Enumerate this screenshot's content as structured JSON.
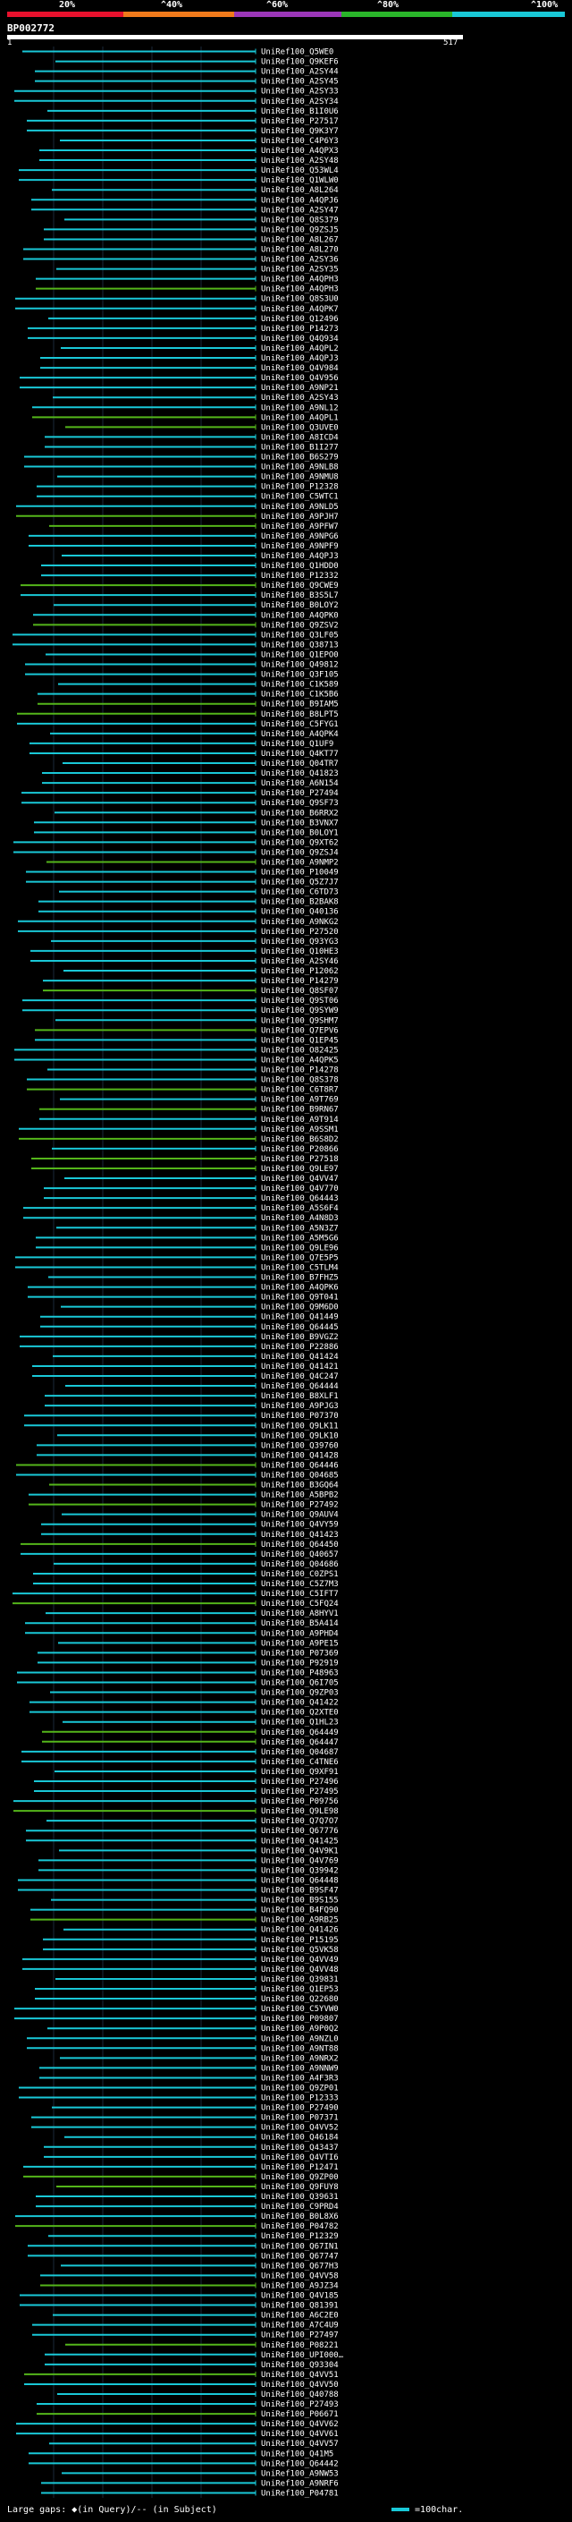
{
  "legend": {
    "labels": [
      "20%",
      "^40%",
      "^60%",
      "^80%",
      "^100%"
    ],
    "colors": [
      "#e8112d",
      "#f07a1b",
      "#9b37b8",
      "#2ab52a",
      "#19c8d7"
    ]
  },
  "query": {
    "id": "BP002772",
    "start": "1",
    "end": "517"
  },
  "hits": [
    {
      "label": "UniRef100_Q5WE0",
      "color": "cyan"
    },
    {
      "label": "UniRef100_Q9KEF6",
      "color": "cyan"
    },
    {
      "label": "UniRef100_A2SY44",
      "color": "cyan"
    },
    {
      "label": "UniRef100_A2SY45",
      "color": "cyan"
    },
    {
      "label": "UniRef100_A2SY33",
      "color": "cyan"
    },
    {
      "label": "UniRef100_A2SY34",
      "color": "cyan"
    },
    {
      "label": "UniRef100_B1I0U6",
      "color": "cyan"
    },
    {
      "label": "UniRef100_P27517",
      "color": "cyan"
    },
    {
      "label": "UniRef100_Q9K3Y7",
      "color": "cyan"
    },
    {
      "label": "UniRef100_C4P6Y3",
      "color": "cyan"
    },
    {
      "label": "UniRef100_A4QPX3",
      "color": "cyan"
    },
    {
      "label": "UniRef100_A2SY48",
      "color": "cyan"
    },
    {
      "label": "UniRef100_Q53WL4",
      "color": "cyan"
    },
    {
      "label": "UniRef100_Q1WLW0",
      "color": "cyan"
    },
    {
      "label": "UniRef100_A8L264",
      "color": "cyan"
    },
    {
      "label": "UniRef100_A4QPJ6",
      "color": "cyan"
    },
    {
      "label": "UniRef100_A2SY47",
      "color": "cyan"
    },
    {
      "label": "UniRef100_Q8S379",
      "color": "cyan"
    },
    {
      "label": "UniRef100_Q9ZSJ5",
      "color": "cyan"
    },
    {
      "label": "UniRef100_A8L267",
      "color": "cyan"
    },
    {
      "label": "UniRef100_A8L270",
      "color": "cyan"
    },
    {
      "label": "UniRef100_A2SY36",
      "color": "cyan"
    },
    {
      "label": "UniRef100_A2SY35",
      "color": "cyan"
    },
    {
      "label": "UniRef100_A4QPH3",
      "color": "cyan"
    },
    {
      "label": "UniRef100_A4QPH3",
      "color": "green"
    },
    {
      "label": "UniRef100_Q8S3U0",
      "color": "cyan"
    },
    {
      "label": "UniRef100_A4QPK7",
      "color": "cyan"
    },
    {
      "label": "UniRef100_Q12496",
      "color": "cyan"
    },
    {
      "label": "UniRef100_P14273",
      "color": "cyan"
    },
    {
      "label": "UniRef100_Q4Q934",
      "color": "cyan"
    },
    {
      "label": "UniRef100_A4QPL2",
      "color": "cyan"
    },
    {
      "label": "UniRef100_A4QPJ3",
      "color": "cyan"
    },
    {
      "label": "UniRef100_Q4V984",
      "color": "cyan"
    },
    {
      "label": "UniRef100_Q4V956",
      "color": "cyan"
    },
    {
      "label": "UniRef100_A9NP21",
      "color": "cyan"
    },
    {
      "label": "UniRef100_A2SY43",
      "color": "cyan"
    },
    {
      "label": "UniRef100_A9NL12",
      "color": "cyan"
    },
    {
      "label": "UniRef100_A4QPL1",
      "color": "green"
    },
    {
      "label": "UniRef100_Q3UVE0",
      "color": "green"
    },
    {
      "label": "UniRef100_A8ICD4",
      "color": "cyan"
    },
    {
      "label": "UniRef100_B1I277",
      "color": "cyan"
    },
    {
      "label": "UniRef100_B6S279",
      "color": "cyan"
    },
    {
      "label": "UniRef100_A9NLB8",
      "color": "cyan"
    },
    {
      "label": "UniRef100_A9NMU8",
      "color": "cyan"
    },
    {
      "label": "UniRef100_P12328",
      "color": "cyan"
    },
    {
      "label": "UniRef100_C5WTC1",
      "color": "cyan"
    },
    {
      "label": "UniRef100_A9NLD5",
      "color": "cyan"
    },
    {
      "label": "UniRef100_A9PJH7",
      "color": "green"
    },
    {
      "label": "UniRef100_A9PFW7",
      "color": "green"
    },
    {
      "label": "UniRef100_A9NPG6",
      "color": "cyan"
    },
    {
      "label": "UniRef100_A9NPF9",
      "color": "cyan"
    },
    {
      "label": "UniRef100_A4QPJ3",
      "color": "cyan"
    },
    {
      "label": "UniRef100_Q1HDD0",
      "color": "cyan"
    },
    {
      "label": "UniRef100_P12332",
      "color": "cyan"
    },
    {
      "label": "UniRef100_Q9CWE9",
      "color": "green"
    },
    {
      "label": "UniRef100_B3S5L7",
      "color": "cyan"
    },
    {
      "label": "UniRef100_B0LOY2",
      "color": "cyan"
    },
    {
      "label": "UniRef100_A4QPK0",
      "color": "cyan"
    },
    {
      "label": "UniRef100_Q9ZSV2",
      "color": "green"
    },
    {
      "label": "UniRef100_Q3LF05",
      "color": "cyan"
    },
    {
      "label": "UniRef100_Q38713",
      "color": "cyan"
    },
    {
      "label": "UniRef100_Q1EPO0",
      "color": "cyan"
    },
    {
      "label": "UniRef100_Q49812",
      "color": "cyan"
    },
    {
      "label": "UniRef100_Q3F105",
      "color": "cyan"
    },
    {
      "label": "UniRef100_C1K589",
      "color": "cyan"
    },
    {
      "label": "UniRef100_C1K5B6",
      "color": "cyan"
    },
    {
      "label": "UniRef100_B9IAM5",
      "color": "green"
    },
    {
      "label": "UniRef100_B8LPT5",
      "color": "green"
    },
    {
      "label": "UniRef100_C5FYG1",
      "color": "cyan"
    },
    {
      "label": "UniRef100_A4QPK4",
      "color": "cyan"
    },
    {
      "label": "UniRef100_Q1UF9",
      "color": "cyan"
    },
    {
      "label": "UniRef100_Q4KT77",
      "color": "cyan"
    },
    {
      "label": "UniRef100_Q04TR7",
      "color": "cyan"
    },
    {
      "label": "UniRef100_Q41823",
      "color": "cyan"
    },
    {
      "label": "UniRef100_A6N154",
      "color": "cyan"
    },
    {
      "label": "UniRef100_P27494",
      "color": "cyan"
    },
    {
      "label": "UniRef100_Q9SF73",
      "color": "cyan"
    },
    {
      "label": "UniRef100_B6RRX2",
      "color": "cyan"
    },
    {
      "label": "UniRef100_B3VNX7",
      "color": "cyan"
    },
    {
      "label": "UniRef100_B0LOY1",
      "color": "cyan"
    },
    {
      "label": "UniRef100_Q9XT62",
      "color": "cyan"
    },
    {
      "label": "UniRef100_Q9ZSJ4",
      "color": "cyan"
    },
    {
      "label": "UniRef100_A9NMP2",
      "color": "green"
    },
    {
      "label": "UniRef100_P10049",
      "color": "cyan"
    },
    {
      "label": "UniRef100_Q5Z7J7",
      "color": "cyan"
    },
    {
      "label": "UniRef100_C6TD73",
      "color": "cyan"
    },
    {
      "label": "UniRef100_B2BAK8",
      "color": "cyan"
    },
    {
      "label": "UniRef100_Q40136",
      "color": "cyan"
    },
    {
      "label": "UniRef100_A9NKG2",
      "color": "cyan"
    },
    {
      "label": "UniRef100_P27520",
      "color": "cyan"
    },
    {
      "label": "UniRef100_Q93YG3",
      "color": "cyan"
    },
    {
      "label": "UniRef100_Q10HE3",
      "color": "cyan"
    },
    {
      "label": "UniRef100_A2SY46",
      "color": "cyan"
    },
    {
      "label": "UniRef100_P12062",
      "color": "cyan"
    },
    {
      "label": "UniRef100_P14279",
      "color": "cyan"
    },
    {
      "label": "UniRef100_Q8SF07",
      "color": "green"
    },
    {
      "label": "UniRef100_Q9ST06",
      "color": "cyan"
    },
    {
      "label": "UniRef100_Q9SYW9",
      "color": "cyan"
    },
    {
      "label": "UniRef100_Q9SHM7",
      "color": "cyan"
    },
    {
      "label": "UniRef100_Q7EPV6",
      "color": "green"
    },
    {
      "label": "UniRef100_Q1EP45",
      "color": "cyan"
    },
    {
      "label": "UniRef100_O82425",
      "color": "cyan"
    },
    {
      "label": "UniRef100_A4QPK5",
      "color": "cyan"
    },
    {
      "label": "UniRef100_P14278",
      "color": "cyan"
    },
    {
      "label": "UniRef100_Q8S378",
      "color": "cyan"
    },
    {
      "label": "UniRef100_C6T8R7",
      "color": "green"
    },
    {
      "label": "UniRef100_A9T769",
      "color": "cyan"
    },
    {
      "label": "UniRef100_B9RN67",
      "color": "green"
    },
    {
      "label": "UniRef100_A9T914",
      "color": "cyan"
    },
    {
      "label": "UniRef100_A9SSM1",
      "color": "cyan"
    },
    {
      "label": "UniRef100_B6S8D2",
      "color": "green"
    },
    {
      "label": "UniRef100_P20866",
      "color": "cyan"
    },
    {
      "label": "UniRef100_P27518",
      "color": "green"
    },
    {
      "label": "UniRef100_Q9LE97",
      "color": "green"
    },
    {
      "label": "UniRef100_Q4VV47",
      "color": "cyan"
    },
    {
      "label": "UniRef100_Q4V770",
      "color": "cyan"
    },
    {
      "label": "UniRef100_Q64443",
      "color": "cyan"
    },
    {
      "label": "UniRef100_A5S6F4",
      "color": "cyan"
    },
    {
      "label": "UniRef100_A4N8D3",
      "color": "cyan"
    },
    {
      "label": "UniRef100_A5N3Z7",
      "color": "cyan"
    },
    {
      "label": "UniRef100_A5M5G6",
      "color": "cyan"
    },
    {
      "label": "UniRef100_Q9LE96",
      "color": "cyan"
    },
    {
      "label": "UniRef100_Q7E5P5",
      "color": "cyan"
    },
    {
      "label": "UniRef100_C5TLM4",
      "color": "cyan"
    },
    {
      "label": "UniRef100_B7FHZ5",
      "color": "cyan"
    },
    {
      "label": "UniRef100_A4QPK6",
      "color": "cyan"
    },
    {
      "label": "UniRef100_Q9T041",
      "color": "cyan"
    },
    {
      "label": "UniRef100_Q9M6D0",
      "color": "cyan"
    },
    {
      "label": "UniRef100_Q41449",
      "color": "cyan"
    },
    {
      "label": "UniRef100_Q64445",
      "color": "cyan"
    },
    {
      "label": "UniRef100_B9VGZ2",
      "color": "cyan"
    },
    {
      "label": "UniRef100_P22886",
      "color": "cyan"
    },
    {
      "label": "UniRef100_Q41424",
      "color": "cyan"
    },
    {
      "label": "UniRef100_Q41421",
      "color": "cyan"
    },
    {
      "label": "UniRef100_Q4C247",
      "color": "cyan"
    },
    {
      "label": "UniRef100_Q64444",
      "color": "cyan"
    },
    {
      "label": "UniRef100_B8XLF1",
      "color": "cyan"
    },
    {
      "label": "UniRef100_A9PJG3",
      "color": "cyan"
    },
    {
      "label": "UniRef100_P07370",
      "color": "cyan"
    },
    {
      "label": "UniRef100_Q9LK11",
      "color": "cyan"
    },
    {
      "label": "UniRef100_Q9LK10",
      "color": "cyan"
    },
    {
      "label": "UniRef100_Q39760",
      "color": "cyan"
    },
    {
      "label": "UniRef100_Q41428",
      "color": "cyan"
    },
    {
      "label": "UniRef100_Q64446",
      "color": "green"
    },
    {
      "label": "UniRef100_Q04685",
      "color": "cyan"
    },
    {
      "label": "UniRef100_B3GQ64",
      "color": "green"
    },
    {
      "label": "UniRef100_A5BPB2",
      "color": "cyan"
    },
    {
      "label": "UniRef100_P27492",
      "color": "green"
    },
    {
      "label": "UniRef100_Q9AUV4",
      "color": "cyan"
    },
    {
      "label": "UniRef100_Q4VY59",
      "color": "cyan"
    },
    {
      "label": "UniRef100_Q41423",
      "color": "cyan"
    },
    {
      "label": "UniRef100_Q64450",
      "color": "green"
    },
    {
      "label": "UniRef100_Q40657",
      "color": "cyan"
    },
    {
      "label": "UniRef100_Q04686",
      "color": "cyan"
    },
    {
      "label": "UniRef100_C0ZPS1",
      "color": "cyan"
    },
    {
      "label": "UniRef100_C5Z7M3",
      "color": "cyan"
    },
    {
      "label": "UniRef100_C5IFT7",
      "color": "cyan"
    },
    {
      "label": "UniRef100_C5FQ24",
      "color": "green"
    },
    {
      "label": "UniRef100_A8HYV1",
      "color": "cyan"
    },
    {
      "label": "UniRef100_B5A414",
      "color": "cyan"
    },
    {
      "label": "UniRef100_A9PHD4",
      "color": "cyan"
    },
    {
      "label": "UniRef100_A9PE15",
      "color": "cyan"
    },
    {
      "label": "UniRef100_P07369",
      "color": "cyan"
    },
    {
      "label": "UniRef100_P92919",
      "color": "cyan"
    },
    {
      "label": "UniRef100_P48963",
      "color": "cyan"
    },
    {
      "label": "UniRef100_Q6I705",
      "color": "cyan"
    },
    {
      "label": "UniRef100_Q9ZP03",
      "color": "cyan"
    },
    {
      "label": "UniRef100_Q41422",
      "color": "cyan"
    },
    {
      "label": "UniRef100_Q2XTE0",
      "color": "cyan"
    },
    {
      "label": "UniRef100_Q1HL23",
      "color": "cyan"
    },
    {
      "label": "UniRef100_Q64449",
      "color": "green"
    },
    {
      "label": "UniRef100_Q64447",
      "color": "green"
    },
    {
      "label": "UniRef100_Q04687",
      "color": "cyan"
    },
    {
      "label": "UniRef100_C4TNE6",
      "color": "cyan"
    },
    {
      "label": "UniRef100_Q9XF91",
      "color": "cyan"
    },
    {
      "label": "UniRef100_P27496",
      "color": "cyan"
    },
    {
      "label": "UniRef100_P27495",
      "color": "cyan"
    },
    {
      "label": "UniRef100_P09756",
      "color": "cyan"
    },
    {
      "label": "UniRef100_Q9LE98",
      "color": "green"
    },
    {
      "label": "UniRef100_Q7Q7O7",
      "color": "cyan"
    },
    {
      "label": "UniRef100_Q67776",
      "color": "cyan"
    },
    {
      "label": "UniRef100_Q41425",
      "color": "cyan"
    },
    {
      "label": "UniRef100_Q4V9K1",
      "color": "cyan"
    },
    {
      "label": "UniRef100_Q4V769",
      "color": "cyan"
    },
    {
      "label": "UniRef100_Q39942",
      "color": "cyan"
    },
    {
      "label": "UniRef100_Q64448",
      "color": "cyan"
    },
    {
      "label": "UniRef100_B9SF47",
      "color": "cyan"
    },
    {
      "label": "UniRef100_B9S155",
      "color": "cyan"
    },
    {
      "label": "UniRef100_B4FQ90",
      "color": "cyan"
    },
    {
      "label": "UniRef100_A9RB25",
      "color": "green"
    },
    {
      "label": "UniRef100_Q41426",
      "color": "cyan"
    },
    {
      "label": "UniRef100_P15195",
      "color": "cyan"
    },
    {
      "label": "UniRef100_Q5VK58",
      "color": "cyan"
    },
    {
      "label": "UniRef100_Q4VV49",
      "color": "cyan"
    },
    {
      "label": "UniRef100_Q4VV48",
      "color": "cyan"
    },
    {
      "label": "UniRef100_Q39831",
      "color": "cyan"
    },
    {
      "label": "UniRef100_Q1EP53",
      "color": "cyan"
    },
    {
      "label": "UniRef100_Q22680",
      "color": "cyan"
    },
    {
      "label": "UniRef100_C5YVW0",
      "color": "cyan"
    },
    {
      "label": "UniRef100_P09807",
      "color": "cyan"
    },
    {
      "label": "UniRef100_A9P0Q2",
      "color": "cyan"
    },
    {
      "label": "UniRef100_A9NZL0",
      "color": "cyan"
    },
    {
      "label": "UniRef100_A9NT88",
      "color": "cyan"
    },
    {
      "label": "UniRef100_A9NRX2",
      "color": "cyan"
    },
    {
      "label": "UniRef100_A9NNW9",
      "color": "cyan"
    },
    {
      "label": "UniRef100_A4F3R3",
      "color": "cyan"
    },
    {
      "label": "UniRef100_Q9ZP01",
      "color": "cyan"
    },
    {
      "label": "UniRef100_P12333",
      "color": "cyan"
    },
    {
      "label": "UniRef100_P27490",
      "color": "cyan"
    },
    {
      "label": "UniRef100_P07371",
      "color": "cyan"
    },
    {
      "label": "UniRef100_Q4VV52",
      "color": "cyan"
    },
    {
      "label": "UniRef100_Q46184",
      "color": "cyan"
    },
    {
      "label": "UniRef100_Q43437",
      "color": "cyan"
    },
    {
      "label": "UniRef100_Q4VTI6",
      "color": "cyan"
    },
    {
      "label": "UniRef100_P12471",
      "color": "cyan"
    },
    {
      "label": "UniRef100_Q9ZP00",
      "color": "green"
    },
    {
      "label": "UniRef100_Q9FUY8",
      "color": "green"
    },
    {
      "label": "UniRef100_Q39631",
      "color": "cyan"
    },
    {
      "label": "UniRef100_C9PRD4",
      "color": "cyan"
    },
    {
      "label": "UniRef100_B0L8X6",
      "color": "cyan"
    },
    {
      "label": "UniRef100_P04782",
      "color": "green"
    },
    {
      "label": "UniRef100_P12329",
      "color": "cyan"
    },
    {
      "label": "UniRef100_Q67IN1",
      "color": "cyan"
    },
    {
      "label": "UniRef100_Q67747",
      "color": "cyan"
    },
    {
      "label": "UniRef100_Q677H3",
      "color": "cyan"
    },
    {
      "label": "UniRef100_Q4VV58",
      "color": "cyan"
    },
    {
      "label": "UniRef100_A9JZ34",
      "color": "green"
    },
    {
      "label": "UniRef100_Q4V185",
      "color": "cyan"
    },
    {
      "label": "UniRef100_Q81391",
      "color": "cyan"
    },
    {
      "label": "UniRef100_A6C2E0",
      "color": "cyan"
    },
    {
      "label": "UniRef100_A7C4U9",
      "color": "cyan"
    },
    {
      "label": "UniRef100_P27497",
      "color": "cyan"
    },
    {
      "label": "UniRef100_P08221",
      "color": "green"
    },
    {
      "label": "UniRef100_UPI000…",
      "color": "cyan"
    },
    {
      "label": "UniRef100_Q93304",
      "color": "cyan"
    },
    {
      "label": "UniRef100_Q4VV51",
      "color": "green"
    },
    {
      "label": "UniRef100_Q4VV50",
      "color": "cyan"
    },
    {
      "label": "UniRef100_Q40788",
      "color": "cyan"
    },
    {
      "label": "UniRef100_P27493",
      "color": "cyan"
    },
    {
      "label": "UniRef100_P06671",
      "color": "green"
    },
    {
      "label": "UniRef100_Q4VV62",
      "color": "cyan"
    },
    {
      "label": "UniRef100_Q4VV61",
      "color": "cyan"
    },
    {
      "label": "UniRef100_Q4VV57",
      "color": "cyan"
    },
    {
      "label": "UniRef100_Q41M5",
      "color": "cyan"
    },
    {
      "label": "UniRef100_Q64442",
      "color": "cyan"
    },
    {
      "label": "UniRef100_A9NW53",
      "color": "cyan"
    },
    {
      "label": "UniRef100_A9NRF6",
      "color": "cyan"
    },
    {
      "label": "UniRef100_P04781",
      "color": "cyan"
    }
  ],
  "footer": {
    "gaps_text": "Large gaps: ◆(in Query)/-- (in Subject)",
    "scale_text": "=100char."
  },
  "colors": {
    "cyan": "#19c8d7",
    "green": "#54b51a",
    "query": "#ffffff"
  }
}
